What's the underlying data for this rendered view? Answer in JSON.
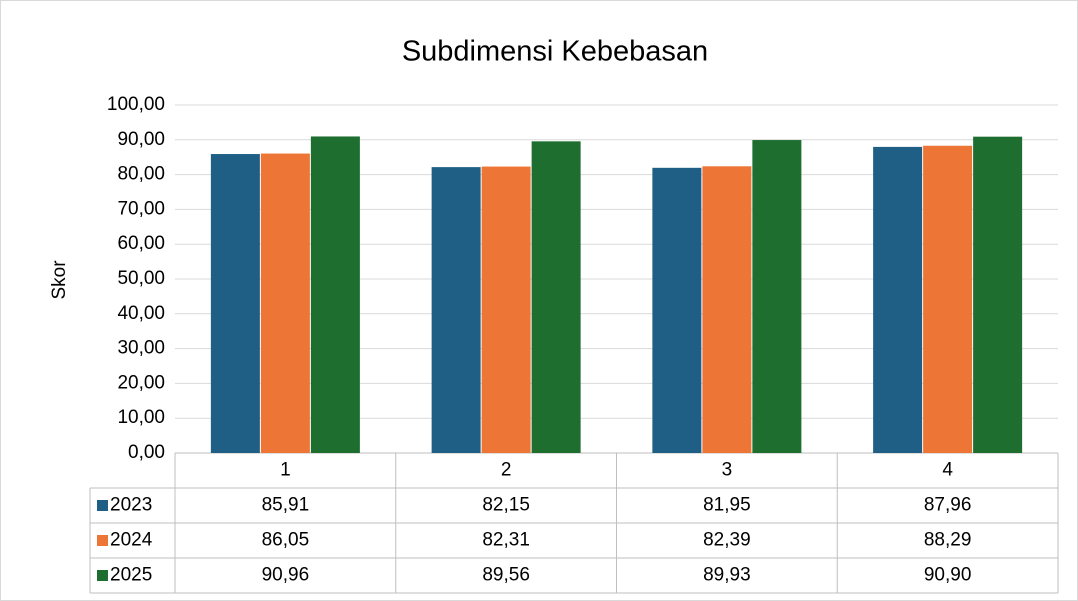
{
  "chart_data": {
    "type": "bar",
    "title": "Subdimensi Kebebasan",
    "y_label": "Skor",
    "categories": [
      "1",
      "2",
      "3",
      "4"
    ],
    "series": [
      {
        "name": "2023",
        "color": "#1f5f86",
        "values": [
          85.91,
          82.15,
          81.95,
          87.96
        ],
        "value_labels": [
          "85,91",
          "82,15",
          "81,95",
          "87,96"
        ]
      },
      {
        "name": "2024",
        "color": "#ed7535",
        "values": [
          86.05,
          82.31,
          82.39,
          88.29
        ],
        "value_labels": [
          "86,05",
          "82,31",
          "82,39",
          "88,29"
        ]
      },
      {
        "name": "2025",
        "color": "#1e6f2f",
        "values": [
          90.96,
          89.56,
          89.93,
          90.9
        ],
        "value_labels": [
          "90,96",
          "89,56",
          "89,93",
          "90,90"
        ]
      }
    ],
    "ylim": [
      0,
      100
    ],
    "yticks": [
      {
        "value": 0,
        "label": "0,00"
      },
      {
        "value": 10,
        "label": "10,00"
      },
      {
        "value": 20,
        "label": "20,00"
      },
      {
        "value": 30,
        "label": "30,00"
      },
      {
        "value": 40,
        "label": "40,00"
      },
      {
        "value": 50,
        "label": "50,00"
      },
      {
        "value": 60,
        "label": "60,00"
      },
      {
        "value": 70,
        "label": "70,00"
      },
      {
        "value": 80,
        "label": "80,00"
      },
      {
        "value": 90,
        "label": "90,00"
      },
      {
        "value": 100,
        "label": "100,00"
      }
    ],
    "grid": true
  }
}
